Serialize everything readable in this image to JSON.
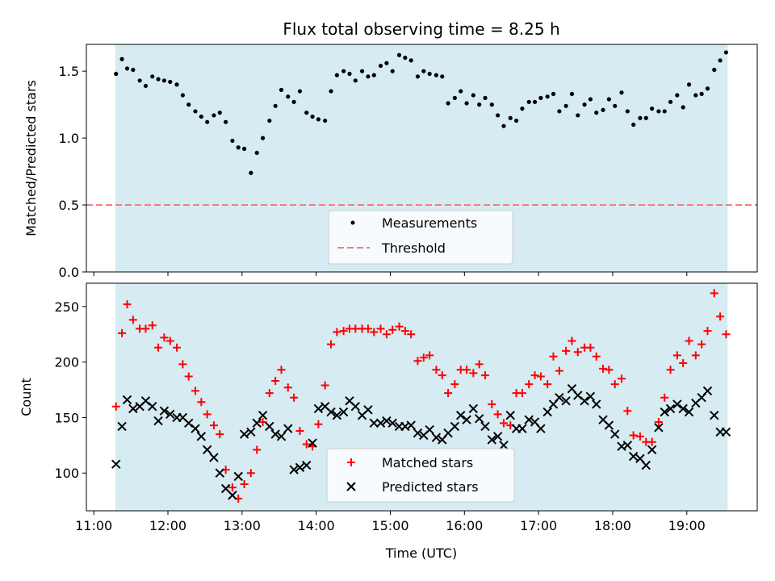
{
  "chart_data": {
    "title": "Flux total observing time = 8.25 h",
    "xlabel": "Time (UTC)",
    "x_ticks": [
      "11:00",
      "12:00",
      "13:00",
      "14:00",
      "15:00",
      "16:00",
      "17:00",
      "18:00",
      "19:00"
    ],
    "x_range_hours": [
      10.9,
      19.95
    ],
    "observing_window_hours": [
      11.29,
      19.55
    ],
    "colors": {
      "band": "#add8e6",
      "threshold": "#f08080",
      "measurement": "#000000",
      "matched": "#ff0000",
      "predicted": "#000000"
    },
    "panels": [
      {
        "type": "scatter",
        "ylabel": "Matched/Predicted stars",
        "ylim": [
          0,
          1.7
        ],
        "y_ticks": [
          0.0,
          0.5,
          1.0,
          1.5
        ],
        "y_tick_labels": [
          "0.0",
          "0.5",
          "1.0",
          "1.5"
        ],
        "threshold": 0.5,
        "legend_position": "bottom-center",
        "legend": [
          {
            "label": "Measurements",
            "marker": "dot"
          },
          {
            "label": "Threshold",
            "marker": "dashed-line"
          }
        ],
        "series": [
          {
            "name": "Measurements",
            "x": [
              11.3,
              11.38,
              11.45,
              11.53,
              11.62,
              11.7,
              11.79,
              11.87,
              11.95,
              12.03,
              12.12,
              12.2,
              12.28,
              12.37,
              12.45,
              12.53,
              12.62,
              12.7,
              12.78,
              12.87,
              12.95,
              13.03,
              13.12,
              13.2,
              13.28,
              13.37,
              13.45,
              13.53,
              13.62,
              13.7,
              13.78,
              13.87,
              13.95,
              14.03,
              14.12,
              14.2,
              14.28,
              14.37,
              14.45,
              14.53,
              14.62,
              14.7,
              14.78,
              14.87,
              14.95,
              15.03,
              15.12,
              15.2,
              15.28,
              15.37,
              15.45,
              15.53,
              15.62,
              15.7,
              15.78,
              15.87,
              15.95,
              16.03,
              16.12,
              16.2,
              16.28,
              16.37,
              16.45,
              16.53,
              16.62,
              16.7,
              16.78,
              16.87,
              16.95,
              17.03,
              17.12,
              17.2,
              17.28,
              17.37,
              17.45,
              17.53,
              17.62,
              17.7,
              17.78,
              17.87,
              17.95,
              18.03,
              18.12,
              18.2,
              18.28,
              18.37,
              18.45,
              18.53,
              18.62,
              18.7,
              18.78,
              18.87,
              18.95,
              19.03,
              19.12,
              19.2,
              19.28,
              19.37,
              19.45,
              19.53
            ],
            "values": [
              1.48,
              1.59,
              1.52,
              1.51,
              1.43,
              1.39,
              1.46,
              1.44,
              1.43,
              1.42,
              1.4,
              1.32,
              1.25,
              1.2,
              1.16,
              1.12,
              1.17,
              1.19,
              1.12,
              0.98,
              0.93,
              0.92,
              0.74,
              0.89,
              1.0,
              1.13,
              1.24,
              1.36,
              1.31,
              1.27,
              1.35,
              1.19,
              1.16,
              1.14,
              1.13,
              1.35,
              1.47,
              1.5,
              1.48,
              1.43,
              1.5,
              1.46,
              1.47,
              1.54,
              1.56,
              1.5,
              1.62,
              1.6,
              1.58,
              1.46,
              1.5,
              1.48,
              1.47,
              1.46,
              1.26,
              1.3,
              1.35,
              1.26,
              1.32,
              1.25,
              1.3,
              1.25,
              1.17,
              1.09,
              1.15,
              1.13,
              1.22,
              1.27,
              1.27,
              1.3,
              1.31,
              1.33,
              1.2,
              1.24,
              1.33,
              1.17,
              1.25,
              1.29,
              1.19,
              1.21,
              1.29,
              1.24,
              1.34,
              1.2,
              1.1,
              1.15,
              1.15,
              1.22,
              1.2,
              1.2,
              1.27,
              1.32,
              1.23,
              1.4,
              1.32,
              1.33,
              1.37,
              1.51,
              1.58,
              1.64
            ]
          }
        ]
      },
      {
        "type": "scatter",
        "ylabel": "Count",
        "ylim": [
          66,
          271
        ],
        "y_ticks": [
          100,
          150,
          200,
          250
        ],
        "y_tick_labels": [
          "100",
          "150",
          "200",
          "250"
        ],
        "legend_position": "bottom-center",
        "legend": [
          {
            "label": "Matched stars",
            "marker": "plus"
          },
          {
            "label": "Predicted stars",
            "marker": "x"
          }
        ],
        "series": [
          {
            "name": "Matched stars",
            "x": [
              11.3,
              11.38,
              11.45,
              11.53,
              11.62,
              11.7,
              11.79,
              11.87,
              11.95,
              12.03,
              12.12,
              12.2,
              12.28,
              12.37,
              12.45,
              12.53,
              12.62,
              12.7,
              12.78,
              12.87,
              12.95,
              13.03,
              13.12,
              13.2,
              13.28,
              13.37,
              13.45,
              13.53,
              13.62,
              13.7,
              13.78,
              13.87,
              13.95,
              14.03,
              14.12,
              14.2,
              14.28,
              14.37,
              14.45,
              14.53,
              14.62,
              14.7,
              14.78,
              14.87,
              14.95,
              15.03,
              15.12,
              15.2,
              15.28,
              15.37,
              15.45,
              15.53,
              15.62,
              15.7,
              15.78,
              15.87,
              15.95,
              16.03,
              16.12,
              16.2,
              16.28,
              16.37,
              16.45,
              16.53,
              16.62,
              16.7,
              16.78,
              16.87,
              16.95,
              17.03,
              17.12,
              17.2,
              17.28,
              17.37,
              17.45,
              17.53,
              17.62,
              17.7,
              17.78,
              17.87,
              17.95,
              18.03,
              18.12,
              18.2,
              18.28,
              18.37,
              18.45,
              18.53,
              18.62,
              18.7,
              18.78,
              18.87,
              18.95,
              19.03,
              19.12,
              19.2,
              19.28,
              19.37,
              19.45,
              19.53
            ],
            "values": [
              160,
              226,
              252,
              238,
              230,
              230,
              233,
              213,
              222,
              219,
              213,
              198,
              187,
              174,
              164,
              153,
              143,
              135,
              103,
              87,
              77,
              90,
              100,
              121,
              146,
              172,
              183,
              193,
              177,
              168,
              138,
              126,
              124,
              144,
              179,
              216,
              227,
              228,
              230,
              230,
              230,
              230,
              227,
              230,
              225,
              229,
              232,
              228,
              225,
              201,
              204,
              206,
              193,
              188,
              172,
              180,
              193,
              193,
              190,
              198,
              188,
              162,
              153,
              145,
              143,
              172,
              172,
              180,
              188,
              187,
              180,
              205,
              192,
              210,
              219,
              209,
              213,
              213,
              205,
              194,
              193,
              180,
              185,
              156,
              134,
              133,
              128,
              128,
              146,
              168,
              193,
              206,
              199,
              219,
              206,
              216,
              228,
              262,
              241,
              225
            ]
          },
          {
            "name": "Predicted stars",
            "x": [
              11.3,
              11.38,
              11.45,
              11.53,
              11.62,
              11.7,
              11.79,
              11.87,
              11.95,
              12.03,
              12.12,
              12.2,
              12.28,
              12.37,
              12.45,
              12.53,
              12.62,
              12.7,
              12.78,
              12.87,
              12.95,
              13.03,
              13.12,
              13.2,
              13.28,
              13.37,
              13.45,
              13.53,
              13.62,
              13.7,
              13.78,
              13.87,
              13.95,
              14.03,
              14.12,
              14.2,
              14.28,
              14.37,
              14.45,
              14.53,
              14.62,
              14.7,
              14.78,
              14.87,
              14.95,
              15.03,
              15.12,
              15.2,
              15.28,
              15.37,
              15.45,
              15.53,
              15.62,
              15.7,
              15.78,
              15.87,
              15.95,
              16.03,
              16.12,
              16.2,
              16.28,
              16.37,
              16.45,
              16.53,
              16.62,
              16.7,
              16.78,
              16.87,
              16.95,
              17.03,
              17.12,
              17.2,
              17.28,
              17.37,
              17.45,
              17.53,
              17.62,
              17.7,
              17.78,
              17.87,
              17.95,
              18.03,
              18.12,
              18.2,
              18.28,
              18.37,
              18.45,
              18.53,
              18.62,
              18.7,
              18.78,
              18.87,
              18.95,
              19.03,
              19.12,
              19.2,
              19.28,
              19.37,
              19.45,
              19.53
            ],
            "values": [
              108,
              142,
              166,
              158,
              160,
              165,
              160,
              147,
              156,
              153,
              150,
              150,
              145,
              140,
              133,
              121,
              114,
              100,
              86,
              80,
              97,
              135,
              137,
              145,
              152,
              142,
              135,
              133,
              140,
              103,
              105,
              107,
              127,
              158,
              160,
              155,
              152,
              155,
              165,
              160,
              152,
              157,
              145,
              145,
              147,
              145,
              142,
              142,
              143,
              136,
              134,
              139,
              132,
              130,
              136,
              142,
              152,
              148,
              158,
              149,
              142,
              130,
              133,
              125,
              152,
              140,
              140,
              148,
              146,
              140,
              155,
              162,
              168,
              165,
              176,
              170,
              165,
              169,
              162,
              148,
              143,
              135,
              124,
              125,
              115,
              113,
              107,
              121,
              141,
              155,
              158,
              162,
              158,
              155,
              163,
              168,
              174,
              152,
              137,
              137
            ]
          }
        ]
      }
    ]
  }
}
